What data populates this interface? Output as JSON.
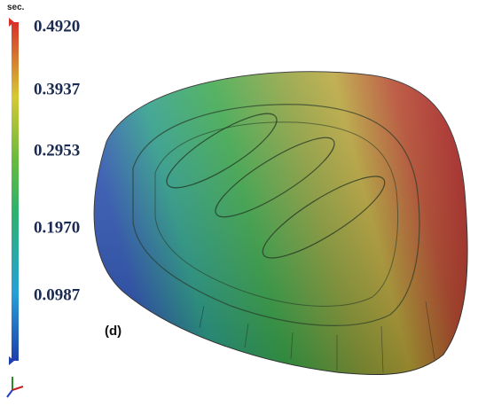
{
  "legend": {
    "unit": "sec.",
    "ticks": [
      "0.4920",
      "0.3937",
      "0.2953",
      "0.1970",
      "0.0987"
    ]
  },
  "panel_label": "(d)"
}
